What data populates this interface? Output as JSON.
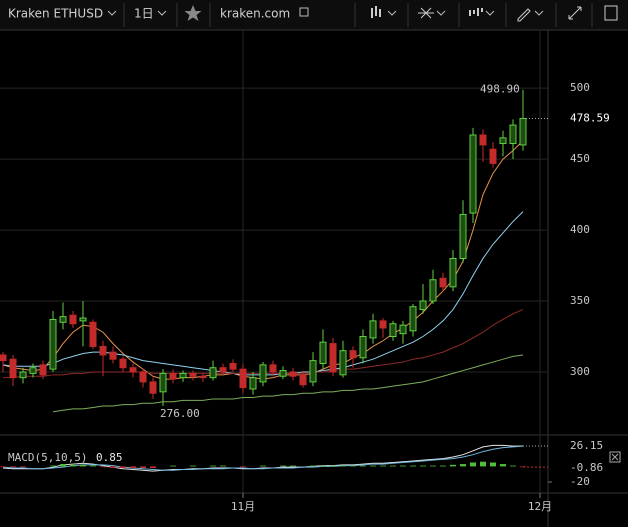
{
  "toolbar": {
    "symbol": "Kraken ETHUSD",
    "interval": "1日",
    "site": "kraken.com"
  },
  "chart_data": [
    {
      "type": "candlestick",
      "up_color": "#5fcf3f",
      "down_color": "#c42b2b",
      "grid": true,
      "xlim": [
        -0.3,
        54.5
      ],
      "xticks": [
        {
          "value": 24,
          "label": "11月"
        },
        {
          "value": 53.7,
          "label": "12月"
        }
      ],
      "ylim": [
        257.7,
        541
      ],
      "yticks": [
        300,
        350,
        400,
        450,
        500
      ],
      "open": [
        312,
        309,
        296,
        299,
        305,
        302,
        335,
        340,
        336,
        335,
        318,
        314,
        309,
        303,
        300,
        293,
        286,
        299,
        296,
        299,
        297,
        296,
        303,
        306,
        302,
        288,
        293,
        305,
        297,
        300,
        298,
        293,
        306,
        320,
        298,
        315,
        310,
        324,
        336,
        325,
        327,
        329,
        344,
        350,
        366,
        360,
        380,
        412,
        467,
        457,
        461,
        461,
        460
      ],
      "high": [
        314,
        312,
        303,
        306,
        308,
        343,
        349,
        343,
        350,
        337,
        322,
        318,
        311,
        306,
        302,
        296,
        302,
        302,
        301,
        301,
        299,
        308,
        306,
        309,
        306,
        300,
        307,
        308,
        304,
        303,
        301,
        314,
        330,
        324,
        322,
        318,
        330,
        341,
        338,
        336,
        336,
        348,
        362,
        372,
        370,
        386,
        421,
        472,
        471,
        462,
        470,
        478,
        498.9
      ],
      "low": [
        300,
        290,
        292,
        296,
        295,
        300,
        330,
        331,
        318,
        316,
        297,
        306,
        300,
        296,
        289,
        281,
        276,
        292,
        293,
        294,
        293,
        294,
        298,
        300,
        285,
        284,
        290,
        297,
        295,
        294,
        289,
        290,
        302,
        297,
        296,
        303,
        306,
        320,
        324,
        322,
        320,
        325,
        341,
        348,
        357,
        357,
        377,
        405,
        448,
        444,
        452,
        450,
        456
      ],
      "close": [
        308,
        296,
        300,
        303,
        298,
        337,
        339,
        334,
        338,
        318,
        312,
        309,
        303,
        300,
        293,
        285,
        299,
        295,
        299,
        297,
        296,
        303,
        300,
        302,
        289,
        296,
        305,
        300,
        301,
        297,
        291,
        308,
        321,
        300,
        315,
        310,
        325,
        336,
        331,
        334,
        333,
        346,
        350,
        365,
        360,
        380,
        411,
        467,
        460,
        447,
        465,
        474,
        478.59
      ],
      "lines": [
        {
          "color": "#e8914a",
          "values": [
            305,
            303,
            302,
            301,
            302,
            310,
            320,
            328,
            333,
            332,
            328,
            320,
            313,
            307,
            302,
            297,
            295,
            295,
            296,
            296,
            297,
            298,
            298,
            299,
            297,
            296,
            295,
            296,
            298,
            298,
            298,
            299,
            302,
            305,
            306,
            310,
            313,
            318,
            322,
            327,
            331,
            336,
            342,
            350,
            357,
            365,
            378,
            400,
            425,
            440,
            450,
            456,
            463
          ]
        },
        {
          "color": "#8fd3f0",
          "values": [
            305,
            304,
            304,
            304,
            304,
            306,
            309,
            311,
            313,
            314,
            314,
            313,
            312,
            310,
            308,
            307,
            306,
            305,
            304,
            303,
            302,
            301,
            300,
            299,
            298,
            298,
            298,
            298,
            299,
            299,
            300,
            300,
            301,
            302,
            303,
            305,
            307,
            309,
            312,
            315,
            318,
            321,
            325,
            330,
            336,
            344,
            355,
            368,
            380,
            390,
            398,
            406,
            413
          ]
        },
        {
          "color": "#8e2a2a",
          "values": [
            296,
            296,
            297,
            297,
            297,
            298,
            298,
            299,
            299,
            300,
            300,
            300,
            300,
            300,
            300,
            299,
            299,
            299,
            299,
            299,
            299,
            299,
            299,
            299,
            299,
            299,
            299,
            299,
            299,
            299,
            299,
            300,
            300,
            301,
            302,
            302,
            303,
            304,
            305,
            306,
            307,
            309,
            310,
            312,
            314,
            317,
            320,
            324,
            328,
            333,
            337,
            341,
            344
          ]
        },
        {
          "color": "#7fae5a",
          "values": [
            null,
            null,
            null,
            null,
            null,
            272,
            273,
            274,
            274,
            275,
            276,
            276,
            277,
            277,
            278,
            278,
            279,
            279,
            280,
            280,
            280,
            281,
            281,
            281,
            282,
            282,
            283,
            283,
            284,
            284,
            285,
            285,
            286,
            286,
            287,
            287,
            288,
            288,
            289,
            290,
            291,
            292,
            293,
            295,
            297,
            299,
            301,
            303,
            305,
            307,
            309,
            311,
            312
          ]
        }
      ],
      "last_price": 478.59,
      "annotations": [
        {
          "value": 498.9,
          "label": "498.90"
        },
        {
          "value": 276,
          "label": "276.00"
        }
      ]
    },
    {
      "type": "macd",
      "title": "MACD(5,10,5)",
      "value": 0.85,
      "ylim": [
        -32.8,
        36.4
      ],
      "yticks": [
        -20
      ],
      "series": [
        {
          "kind": "line",
          "color": "#e6e6e6",
          "values": [
            -2,
            -3,
            -3,
            -3,
            -3,
            -1,
            2,
            3,
            4,
            3,
            1,
            -1,
            -3,
            -4,
            -5,
            -6,
            -5,
            -4,
            -4,
            -3,
            -3,
            -2,
            -2,
            -2,
            -3,
            -3,
            -2,
            -2,
            -1,
            -1,
            -1,
            0,
            1,
            1,
            2,
            2,
            3,
            4,
            4,
            5,
            6,
            7,
            8,
            9,
            10,
            12,
            15,
            20,
            25,
            27,
            27,
            26,
            26.15
          ]
        },
        {
          "kind": "line",
          "color": "#6fb6e0",
          "values": [
            -1,
            -2,
            -2,
            -3,
            -3,
            -2,
            -1,
            1,
            2,
            2,
            2,
            1,
            -1,
            -2,
            -3,
            -4,
            -5,
            -5,
            -4,
            -4,
            -3,
            -3,
            -3,
            -2,
            -2,
            -3,
            -3,
            -2,
            -2,
            -2,
            -1,
            -1,
            0,
            0,
            1,
            1,
            2,
            3,
            3,
            4,
            5,
            6,
            7,
            8,
            9,
            10,
            12,
            15,
            19,
            22,
            24,
            25,
            26
          ]
        },
        {
          "kind": "histogram",
          "up_color": "#4fbf3a",
          "down_color": "#c42b2b",
          "values": [
            -1,
            -1,
            -1,
            0,
            0,
            1,
            3,
            2,
            2,
            1,
            -1,
            -2,
            -2,
            -2,
            -2,
            -2,
            0,
            1,
            0,
            1,
            0,
            1,
            1,
            0,
            -1,
            0,
            1,
            0,
            1,
            1,
            0,
            1,
            1,
            1,
            1,
            1,
            1,
            1,
            1,
            1,
            1,
            1,
            1,
            1,
            1,
            2,
            3,
            5,
            6,
            5,
            3,
            1,
            -0.86
          ]
        }
      ]
    }
  ]
}
